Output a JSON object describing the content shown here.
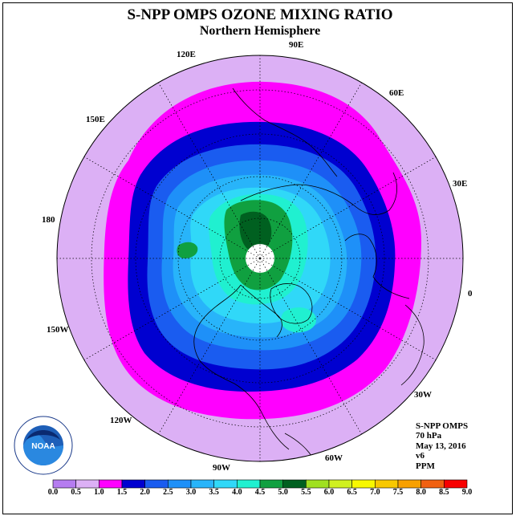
{
  "title": "S-NPP OMPS OZONE MIXING RATIO",
  "subtitle": "Northern Hemisphere",
  "longitude_labels": {
    "lon_90e": "90E",
    "lon_60e": "60E",
    "lon_30e": "30E",
    "lon_0": "0",
    "lon_30w": "30W",
    "lon_60w": "60W",
    "lon_90w": "90W",
    "lon_120w": "120W",
    "lon_150w": "150W",
    "lon_180": "180",
    "lon_150e": "150E",
    "lon_120e": "120E"
  },
  "info": {
    "instrument": "S-NPP OMPS",
    "level": "70 hPa",
    "date": "May 13, 2016",
    "version": "v6",
    "units": "PPM"
  },
  "logo": {
    "text": "NOAA",
    "ring_text_top": "NATIONAL OCEANIC AND ATMOSPHERIC ADMINISTRATION",
    "ring_text_bottom": "U.S. DEPARTMENT OF COMMERCE"
  },
  "colorbar": {
    "ticks": [
      "0.0",
      "0.5",
      "1.0",
      "1.5",
      "2.0",
      "2.5",
      "3.0",
      "3.5",
      "4.0",
      "4.5",
      "5.0",
      "5.5",
      "6.0",
      "6.5",
      "7.0",
      "7.5",
      "8.0",
      "8.5",
      "9.0"
    ],
    "colors": [
      "#b57cf0",
      "#dcb0f5",
      "#ff00ff",
      "#0000d0",
      "#1a5cf0",
      "#1e90f8",
      "#28b4fa",
      "#30d8f8",
      "#20f0d0",
      "#10a040",
      "#006020",
      "#a0e020",
      "#d0f020",
      "#f8f800",
      "#f8c800",
      "#f8a000",
      "#f06010",
      "#f80000",
      "#a05030"
    ]
  },
  "chart_data": {
    "type": "heatmap",
    "title": "S-NPP OMPS OZONE MIXING RATIO",
    "subtitle": "Northern Hemisphere",
    "projection": "polar stereographic, north pole",
    "pressure_level": "70 hPa",
    "date": "May 13, 2016",
    "units": "PPM",
    "scale_min": 0.0,
    "scale_max": 9.0,
    "scale_step": 0.5,
    "approx_ranges_by_region": {
      "outer_subtropics": "0.5-1.0",
      "mid_latitudes_outer_ring": "1.0-1.5",
      "mid_latitudes_band": "1.5-2.0",
      "high_mid_latitudes": "2.0-3.5",
      "polar_region": "3.5-4.5",
      "peak_near_pole": "4.5-5.0"
    }
  }
}
